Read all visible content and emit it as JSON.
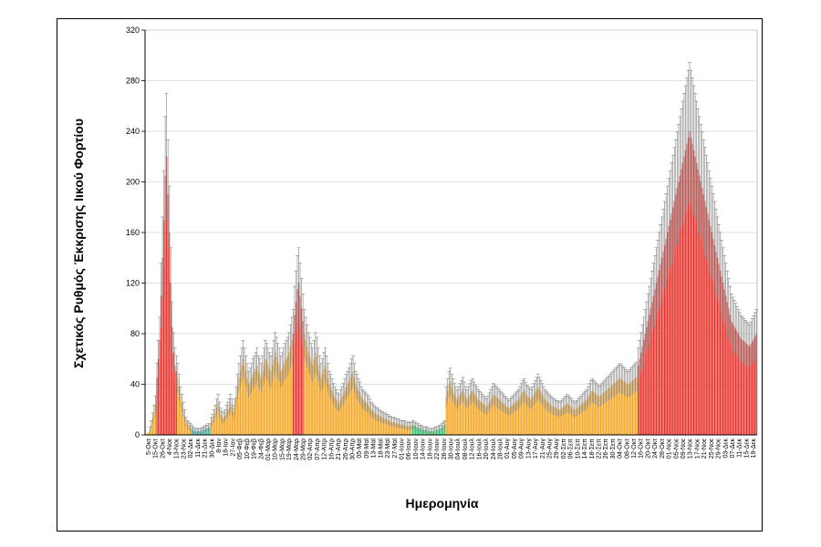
{
  "chart_data": {
    "type": "bar",
    "xlabel": "Ημερομηνία",
    "ylabel": "Σχετικός Ρυθμός Έκκρισης Ιικού Φορτίου",
    "ylim": [
      0,
      320
    ],
    "yticks": [
      0,
      40,
      80,
      120,
      160,
      200,
      240,
      280,
      320
    ],
    "grid": true,
    "error_bars": true,
    "colors": {
      "red": "#e8312a",
      "orange": "#f5a623",
      "green": "#2ecc71",
      "teal": "#3bb8a0",
      "error": "#7f7f7f",
      "grid": "#d9d9d9"
    },
    "x_tick_labels": [
      "5-Οκτ",
      "15-Οκτ",
      "26-Οκτ",
      "4-Νοε",
      "13-Νοε",
      "23-Νοε",
      "02-Δεκ",
      "11-Δεκ",
      "21-Δεκ",
      "30-Δεκ",
      "8-Ιαν",
      "18-Ιαν",
      "27-Ιαν",
      "05-Φεβ",
      "10-Φεβ",
      "19-Φεβ",
      "24-Φεβ",
      "01-Μαρ",
      "10-Μαρ",
      "15-Μαρ",
      "19-Μαρ",
      "24-Μαρ",
      "29-Μαρ",
      "02-Απρ",
      "07-Απρ",
      "12-Απρ",
      "16-Απρ",
      "21-Απρ",
      "26-Απρ",
      "30-Απρ",
      "05-Μαϊ",
      "09-Μαϊ",
      "13-Μαϊ",
      "18-Μαϊ",
      "23-Μαϊ",
      "27-Μαϊ",
      "01-Ιουν",
      "06-Ιουν",
      "10-Ιουν",
      "14-Ιουν",
      "18-Ιουν",
      "22-Ιουν",
      "26-Ιουν",
      "30-Ιουν",
      "04-Ιουλ",
      "08-Ιουλ",
      "12-Ιουλ",
      "16-Ιουλ",
      "20-Ιουλ",
      "24-Ιουλ",
      "28-Ιουλ",
      "01-Αυγ",
      "05-Αυγ",
      "09-Αυγ",
      "13-Αυγ",
      "17-Αυγ",
      "21-Αυγ",
      "25-Αυγ",
      "29-Αυγ",
      "02-Σεπ",
      "06-Σεπ",
      "10-Σεπ",
      "14-Σεπ",
      "18-Σεπ",
      "22-Σεπ",
      "26-Σεπ",
      "30-Σεπ",
      "04-Οκτ",
      "08-Οκτ",
      "12-Οκτ",
      "16-Οκτ",
      "20-Οκτ",
      "24-Οκτ",
      "28-Οκτ",
      "01-Νοε",
      "05-Νοε",
      "09-Νοε",
      "13-Νοε",
      "17-Νοε",
      "21-Νοε",
      "25-Νοε",
      "29-Νοε",
      "03-Δεκ",
      "07-Δεκ",
      "11-Δεκ",
      "15-Δεκ",
      "19-Δεκ"
    ],
    "segments": [
      {
        "color": "orange",
        "count": 8,
        "values": [
          0,
          1,
          2,
          4,
          8,
          13,
          18,
          24
        ]
      },
      {
        "color": "red",
        "count": 15,
        "values": [
          45,
          60,
          75,
          110,
          140,
          170,
          205,
          220,
          190,
          160,
          120,
          85,
          65,
          55,
          50
        ]
      },
      {
        "color": "orange",
        "count": 10,
        "values": [
          45,
          38,
          30,
          25,
          20,
          15,
          10,
          8,
          7,
          6
        ]
      },
      {
        "color": "teal",
        "count": 14,
        "values": [
          5,
          4,
          3,
          3,
          3,
          3,
          3,
          3,
          4,
          4,
          5,
          5,
          6,
          6
        ]
      },
      {
        "color": "orange",
        "count": 59,
        "values": [
          10,
          12,
          15,
          18,
          22,
          25,
          20,
          16,
          14,
          13,
          15,
          18,
          20,
          22,
          25,
          22,
          18,
          22,
          30,
          38,
          45,
          50,
          55,
          60,
          55,
          50,
          45,
          40,
          42,
          45,
          48,
          50,
          52,
          55,
          50,
          48,
          45,
          50,
          55,
          60,
          58,
          55,
          52,
          50,
          55,
          60,
          65,
          62,
          58,
          55,
          50,
          52,
          55,
          58,
          60,
          62,
          65,
          70,
          75
        ]
      },
      {
        "color": "red",
        "count": 8,
        "values": [
          80,
          95,
          105,
          115,
          120,
          110,
          100,
          90
        ]
      },
      {
        "color": "orange",
        "count": 78,
        "values": [
          80,
          75,
          70,
          65,
          62,
          58,
          55,
          60,
          65,
          62,
          55,
          50,
          45,
          48,
          52,
          55,
          50,
          45,
          40,
          38,
          35,
          32,
          30,
          28,
          26,
          25,
          28,
          30,
          32,
          35,
          38,
          40,
          42,
          45,
          48,
          50,
          45,
          40,
          38,
          35,
          33,
          30,
          28,
          27,
          26,
          25,
          24,
          22,
          20,
          19,
          18,
          17,
          16,
          16,
          15,
          14,
          14,
          13,
          13,
          12,
          12,
          11,
          11,
          10,
          10,
          10,
          9,
          9,
          9,
          8,
          8,
          8,
          8,
          7,
          7,
          7,
          7,
          7
        ]
      },
      {
        "color": "green",
        "count": 24,
        "values": [
          8,
          7,
          7,
          6,
          6,
          5,
          5,
          4,
          4,
          4,
          4,
          3,
          3,
          3,
          3,
          3,
          4,
          4,
          4,
          5,
          5,
          6,
          7,
          8
        ]
      },
      {
        "color": "orange",
        "count": 138,
        "values": [
          30,
          35,
          40,
          42,
          38,
          35,
          32,
          30,
          28,
          30,
          32,
          34,
          36,
          33,
          30,
          28,
          30,
          32,
          34,
          35,
          33,
          31,
          30,
          28,
          27,
          26,
          25,
          24,
          23,
          22,
          24,
          26,
          28,
          30,
          32,
          31,
          30,
          29,
          28,
          27,
          26,
          25,
          24,
          23,
          22,
          21,
          22,
          23,
          24,
          25,
          26,
          27,
          28,
          30,
          32,
          34,
          35,
          33,
          31,
          30,
          29,
          28,
          30,
          32,
          34,
          36,
          38,
          36,
          34,
          32,
          30,
          28,
          27,
          26,
          25,
          24,
          23,
          22,
          22,
          21,
          21,
          20,
          20,
          21,
          22,
          23,
          24,
          25,
          24,
          23,
          22,
          21,
          20,
          20,
          21,
          22,
          23,
          24,
          25,
          26,
          27,
          28,
          30,
          32,
          34,
          35,
          34,
          33,
          32,
          31,
          30,
          31,
          32,
          33,
          34,
          35,
          36,
          37,
          38,
          39,
          40,
          41,
          42,
          43,
          44,
          45,
          44,
          43,
          42,
          41,
          40,
          40,
          41,
          42,
          43,
          44,
          45,
          46
        ]
      },
      {
        "color": "red",
        "count": 86,
        "values": [
          55,
          60,
          65,
          70,
          75,
          80,
          85,
          90,
          95,
          100,
          105,
          110,
          115,
          120,
          125,
          130,
          135,
          140,
          145,
          150,
          155,
          160,
          165,
          170,
          175,
          180,
          185,
          190,
          195,
          200,
          205,
          210,
          215,
          220,
          225,
          230,
          235,
          240,
          235,
          230,
          225,
          220,
          215,
          210,
          205,
          200,
          195,
          190,
          185,
          180,
          175,
          170,
          165,
          160,
          155,
          150,
          145,
          140,
          135,
          130,
          125,
          120,
          115,
          110,
          105,
          100,
          95,
          90,
          88,
          86,
          84,
          82,
          80,
          78,
          76,
          75,
          74,
          73,
          72,
          71,
          70,
          72,
          74,
          76,
          78,
          80
        ]
      }
    ]
  }
}
